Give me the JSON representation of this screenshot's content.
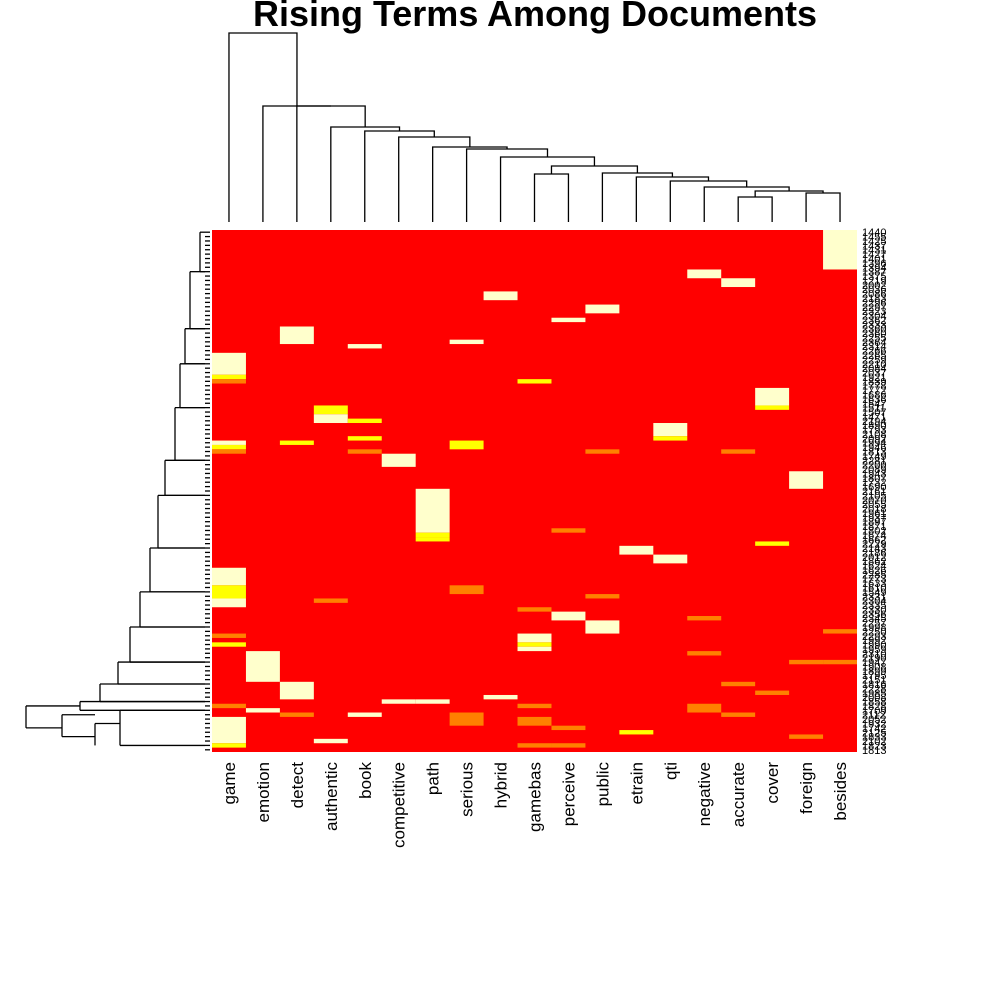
{
  "chart_data": {
    "type": "heatmap",
    "title": "Rising Terms Among Documents",
    "xlabel": "",
    "ylabel": "",
    "colors": {
      "high": "#ff0000",
      "mid": "#ffff00",
      "low": "#ffffcc",
      "orange": "#ff8000"
    },
    "columns": [
      "game",
      "emotion",
      "detect",
      "authentic",
      "book",
      "competitive",
      "path",
      "serious",
      "hybrid",
      "gamebas",
      "perceive",
      "public",
      "etrain",
      "qti",
      "negative",
      "accurate",
      "cover",
      "foreign",
      "besides"
    ],
    "row_labels": [
      "1440",
      "1455",
      "1425",
      "1437",
      "1431",
      "1427",
      "1401",
      "1396",
      "1394",
      "1387",
      "1375",
      "1219",
      "2002",
      "2036",
      "2086",
      "2183",
      "2296",
      "2297",
      "2323",
      "2304",
      "2362",
      "2333",
      "2360",
      "2360",
      "2255",
      "2364",
      "2314",
      "2266",
      "2265",
      "2259",
      "2210",
      "2084",
      "2037",
      "1921",
      "1839",
      "1778",
      "1772",
      "1686",
      "1636",
      "1547",
      "1511",
      "1507",
      "1471",
      "2194",
      "1890",
      "1793",
      "2108",
      "2092",
      "1994",
      "1946",
      "1813",
      "1749",
      "2281",
      "2200",
      "2089",
      "1943",
      "1807",
      "1732",
      "1690",
      "2161",
      "2105",
      "2070",
      "2055",
      "2018",
      "1961",
      "1937",
      "1897",
      "1871",
      "1802",
      "1674",
      "1662",
      "2229",
      "2143",
      "2186",
      "2012",
      "1862",
      "1624",
      "1626",
      "2285",
      "1773",
      "1633",
      "1610",
      "1549",
      "2331",
      "2304",
      "2335",
      "2330",
      "2356",
      "2345",
      "2257",
      "1998",
      "2250",
      "2293",
      "1992",
      "1990",
      "1959",
      "2310",
      "2190",
      "1947",
      "1908",
      "1899",
      "1795",
      "2151",
      "1816",
      "2228",
      "1985",
      "2008",
      "1858",
      "1828",
      "1709",
      "2112",
      "2052",
      "1932",
      "1742",
      "2125",
      "1833",
      "2102",
      "1823",
      "1813"
    ],
    "cells": [
      {
        "r": [
          0,
          8
        ],
        "c": "besides",
        "v": "low"
      },
      {
        "r": [
          9,
          10
        ],
        "c": "negative",
        "v": "low"
      },
      {
        "r": [
          11,
          12
        ],
        "c": "accurate",
        "v": "low"
      },
      {
        "r": [
          14,
          15
        ],
        "c": "hybrid",
        "v": "low"
      },
      {
        "r": [
          17,
          18
        ],
        "c": "public",
        "v": "low"
      },
      {
        "r": [
          20,
          20
        ],
        "c": "perceive",
        "v": "low"
      },
      {
        "r": [
          22,
          25
        ],
        "c": "detect",
        "v": "low"
      },
      {
        "r": [
          26,
          26
        ],
        "c": "book",
        "v": "low"
      },
      {
        "r": [
          25,
          25
        ],
        "c": "serious",
        "v": "low"
      },
      {
        "r": [
          28,
          32
        ],
        "c": "game",
        "v": "low"
      },
      {
        "r": [
          33,
          33
        ],
        "c": "game",
        "v": "mid"
      },
      {
        "r": [
          34,
          34
        ],
        "c": "game",
        "v": "orange"
      },
      {
        "r": [
          34,
          34
        ],
        "c": "gamebas",
        "v": "mid"
      },
      {
        "r": [
          36,
          39
        ],
        "c": "cover",
        "v": "low"
      },
      {
        "r": [
          40,
          40
        ],
        "c": "cover",
        "v": "mid"
      },
      {
        "r": [
          40,
          41
        ],
        "c": "authentic",
        "v": "mid"
      },
      {
        "r": [
          42,
          43
        ],
        "c": "authentic",
        "v": "low"
      },
      {
        "r": [
          43,
          43
        ],
        "c": "book",
        "v": "mid"
      },
      {
        "r": [
          44,
          46
        ],
        "c": "qti",
        "v": "low"
      },
      {
        "r": [
          47,
          47
        ],
        "c": "qti",
        "v": "mid"
      },
      {
        "r": [
          47,
          47
        ],
        "c": "book",
        "v": "mid"
      },
      {
        "r": [
          48,
          48
        ],
        "c": "game",
        "v": "low"
      },
      {
        "r": [
          48,
          48
        ],
        "c": "detect",
        "v": "mid"
      },
      {
        "r": [
          48,
          49
        ],
        "c": "serious",
        "v": "mid"
      },
      {
        "r": [
          49,
          49
        ],
        "c": "game",
        "v": "mid"
      },
      {
        "r": [
          50,
          50
        ],
        "c": "game",
        "v": "orange"
      },
      {
        "r": [
          50,
          50
        ],
        "c": "book",
        "v": "orange"
      },
      {
        "r": [
          50,
          50
        ],
        "c": "public",
        "v": "orange"
      },
      {
        "r": [
          50,
          50
        ],
        "c": "accurate",
        "v": "orange"
      },
      {
        "r": [
          51,
          53
        ],
        "c": "competitive",
        "v": "low"
      },
      {
        "r": [
          55,
          58
        ],
        "c": "foreign",
        "v": "low"
      },
      {
        "r": [
          59,
          68
        ],
        "c": "path",
        "v": "low"
      },
      {
        "r": [
          69,
          69
        ],
        "c": "path",
        "v": "mid"
      },
      {
        "r": [
          70,
          70
        ],
        "c": "path",
        "v": "mid"
      },
      {
        "r": [
          68,
          68
        ],
        "c": "perceive",
        "v": "orange"
      },
      {
        "r": [
          71,
          71
        ],
        "c": "cover",
        "v": "mid"
      },
      {
        "r": [
          72,
          73
        ],
        "c": "etrain",
        "v": "low"
      },
      {
        "r": [
          74,
          75
        ],
        "c": "qti",
        "v": "low"
      },
      {
        "r": [
          77,
          80
        ],
        "c": "game",
        "v": "low"
      },
      {
        "r": [
          81,
          82
        ],
        "c": "serious",
        "v": "orange"
      },
      {
        "r": [
          81,
          83
        ],
        "c": "game",
        "v": "mid"
      },
      {
        "r": [
          83,
          83
        ],
        "c": "public",
        "v": "orange"
      },
      {
        "r": [
          84,
          84
        ],
        "c": "authentic",
        "v": "orange"
      },
      {
        "r": [
          84,
          85
        ],
        "c": "game",
        "v": "low"
      },
      {
        "r": [
          86,
          86
        ],
        "c": "gamebas",
        "v": "orange"
      },
      {
        "r": [
          87,
          88
        ],
        "c": "perceive",
        "v": "low"
      },
      {
        "r": [
          88,
          88
        ],
        "c": "negative",
        "v": "orange"
      },
      {
        "r": [
          89,
          91
        ],
        "c": "public",
        "v": "low"
      },
      {
        "r": [
          91,
          91
        ],
        "c": "besides",
        "v": "orange"
      },
      {
        "r": [
          92,
          92
        ],
        "c": "game",
        "v": "orange"
      },
      {
        "r": [
          92,
          93
        ],
        "c": "gamebas",
        "v": "low"
      },
      {
        "r": [
          94,
          94
        ],
        "c": "gamebas",
        "v": "mid"
      },
      {
        "r": [
          94,
          94
        ],
        "c": "game",
        "v": "mid"
      },
      {
        "r": [
          95,
          95
        ],
        "c": "gamebas",
        "v": "low"
      },
      {
        "r": [
          96,
          96
        ],
        "c": "negative",
        "v": "orange"
      },
      {
        "r": [
          96,
          102
        ],
        "c": "emotion",
        "v": "low"
      },
      {
        "r": [
          98,
          98
        ],
        "c": "foreign",
        "v": "orange"
      },
      {
        "r": [
          98,
          98
        ],
        "c": "besides",
        "v": "orange"
      },
      {
        "r": [
          103,
          103
        ],
        "c": "accurate",
        "v": "orange"
      },
      {
        "r": [
          103,
          106
        ],
        "c": "detect",
        "v": "low"
      },
      {
        "r": [
          105,
          105
        ],
        "c": "cover",
        "v": "orange"
      },
      {
        "r": [
          106,
          106
        ],
        "c": "hybrid",
        "v": "low"
      },
      {
        "r": [
          107,
          107
        ],
        "c": "path",
        "v": "low"
      },
      {
        "r": [
          107,
          107
        ],
        "c": "competitive",
        "v": "low"
      },
      {
        "r": [
          108,
          108
        ],
        "c": "game",
        "v": "orange"
      },
      {
        "r": [
          108,
          108
        ],
        "c": "gamebas",
        "v": "orange"
      },
      {
        "r": [
          108,
          109
        ],
        "c": "negative",
        "v": "orange"
      },
      {
        "r": [
          109,
          109
        ],
        "c": "emotion",
        "v": "low"
      },
      {
        "r": [
          110,
          110
        ],
        "c": "book",
        "v": "low"
      },
      {
        "r": [
          110,
          110
        ],
        "c": "accurate",
        "v": "orange"
      },
      {
        "r": [
          110,
          110
        ],
        "c": "detect",
        "v": "orange"
      },
      {
        "r": [
          110,
          112
        ],
        "c": "serious",
        "v": "orange"
      },
      {
        "r": [
          111,
          116
        ],
        "c": "game",
        "v": "low"
      },
      {
        "r": [
          111,
          112
        ],
        "c": "gamebas",
        "v": "orange"
      },
      {
        "r": [
          113,
          113
        ],
        "c": "perceive",
        "v": "orange"
      },
      {
        "r": [
          114,
          114
        ],
        "c": "etrain",
        "v": "mid"
      },
      {
        "r": [
          115,
          115
        ],
        "c": "foreign",
        "v": "orange"
      },
      {
        "r": [
          116,
          116
        ],
        "c": "authentic",
        "v": "low"
      },
      {
        "r": [
          117,
          117
        ],
        "c": "game",
        "v": "mid"
      },
      {
        "r": [
          117,
          117
        ],
        "c": "perceive",
        "v": "orange"
      },
      {
        "r": [
          117,
          117
        ],
        "c": "gamebas",
        "v": "orange"
      }
    ]
  }
}
